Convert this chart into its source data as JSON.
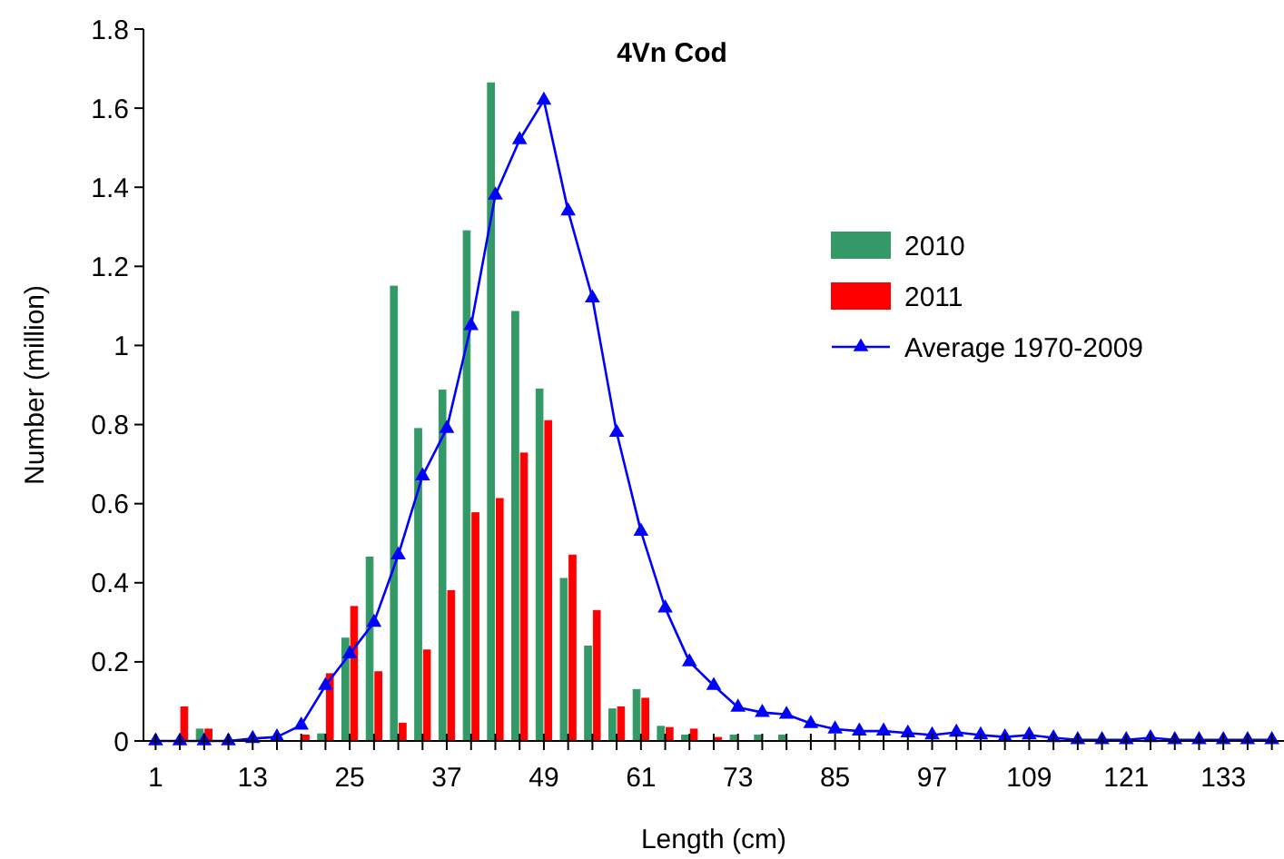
{
  "chart_data": {
    "type": "bar",
    "title": "4Vn Cod",
    "xlabel": "Length (cm)",
    "ylabel": "Number (million)",
    "categories": [
      "1",
      null,
      null,
      null,
      "13",
      null,
      null,
      null,
      "25",
      null,
      null,
      null,
      "37",
      null,
      null,
      null,
      "49",
      null,
      null,
      null,
      "61",
      null,
      null,
      null,
      "73",
      null,
      null,
      null,
      "85",
      null,
      null,
      null,
      "97",
      null,
      null,
      null,
      "109",
      null,
      null,
      null,
      "121",
      null,
      null,
      null,
      "133",
      null,
      null
    ],
    "series": [
      {
        "name": "2010",
        "color": "#339966",
        "values": [
          0,
          0,
          0.03,
          0,
          null,
          0,
          0,
          0.018,
          0.26,
          0.465,
          1.15,
          0.79,
          0.887,
          1.29,
          1.664,
          1.086,
          0.89,
          0.411,
          0.24,
          0.081,
          0.13,
          0.037,
          0.015,
          0,
          0.015,
          0.015,
          0.015,
          0,
          0,
          0,
          0,
          0,
          0,
          0,
          0,
          0,
          0,
          0,
          0,
          0,
          0,
          0,
          0,
          0,
          0,
          0,
          0
        ]
      },
      {
        "name": "2011",
        "color": "#ff0000",
        "values": [
          0,
          0.086,
          0.03,
          0,
          0,
          null,
          0.015,
          0.17,
          0.34,
          0.175,
          0.045,
          0.23,
          0.38,
          0.577,
          0.613,
          0.728,
          0.81,
          0.47,
          0.33,
          0.086,
          0.108,
          0.034,
          0.03,
          0.009,
          0,
          0,
          0,
          0,
          0,
          0,
          0,
          0,
          0,
          0,
          0,
          0,
          0,
          0,
          0,
          0,
          0,
          0,
          0,
          0,
          0,
          0,
          0
        ]
      },
      {
        "name": "Average 1970-2009",
        "type": "line",
        "color": "#0000ff",
        "values": [
          0,
          0,
          0,
          0,
          0.006,
          0.01,
          0.04,
          0.14,
          0.22,
          0.3,
          0.47,
          0.67,
          0.79,
          1.05,
          1.38,
          1.52,
          1.62,
          1.34,
          1.12,
          0.78,
          0.53,
          0.336,
          0.2,
          0.14,
          0.085,
          0.072,
          0.067,
          0.044,
          0.03,
          0.025,
          0.025,
          0.02,
          0.015,
          0.022,
          0.015,
          0.01,
          0.015,
          0.008,
          0.003,
          0.003,
          0.003,
          0.008,
          0.003,
          0.003,
          0.003,
          0.003,
          0.003
        ]
      }
    ],
    "ylim": [
      0,
      1.8
    ],
    "yticks": [
      0,
      0.2,
      0.4,
      0.6,
      0.8,
      1,
      1.2,
      1.4,
      1.6,
      1.8
    ],
    "grid": false,
    "legend": "right",
    "marker": "triangle"
  }
}
